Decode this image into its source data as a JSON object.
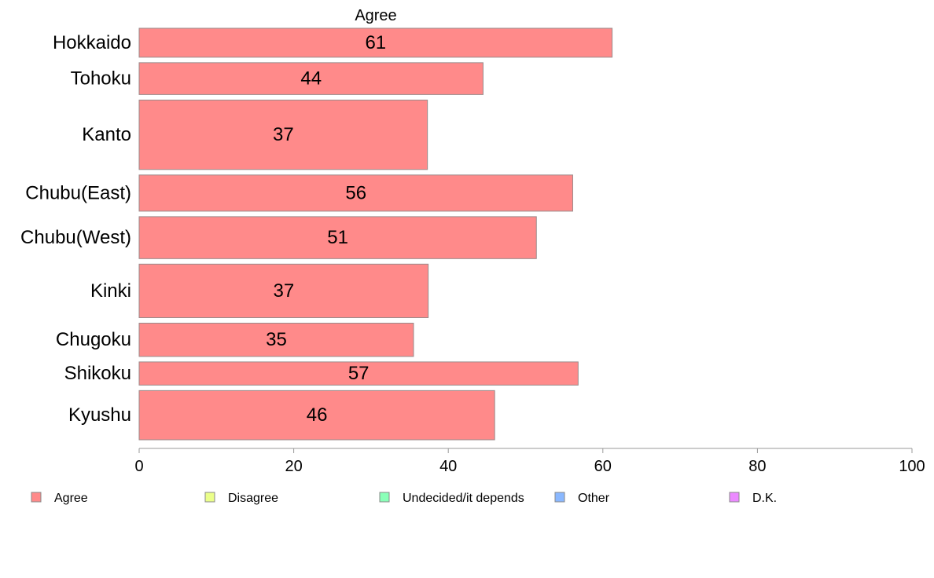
{
  "chart_data": {
    "type": "bar",
    "orientation": "horizontal",
    "title": "Agree",
    "categories": [
      "Hokkaido",
      "Tohoku",
      "Kanto",
      "Chubu(East)",
      "Chubu(West)",
      "Kinki",
      "Chugoku",
      "Shikoku",
      "Kyushu"
    ],
    "series": [
      {
        "name": "Agree",
        "color": "#ff8a8a",
        "values": [
          61.2,
          44.5,
          37.3,
          56.1,
          51.4,
          37.4,
          35.5,
          56.8,
          46.0
        ]
      }
    ],
    "data_labels": [
      "61",
      "44",
      "37",
      "56",
      "51",
      "37",
      "35",
      "57",
      "46"
    ],
    "category_weights": [
      1.0,
      1.1,
      2.4,
      1.25,
      1.45,
      1.85,
      1.15,
      0.8,
      1.7
    ],
    "xlim": [
      0,
      100
    ],
    "xticks": [
      0,
      20,
      40,
      60,
      80,
      100
    ],
    "xtick_labels": [
      "0",
      "20",
      "40",
      "60",
      "80",
      "100"
    ],
    "grid": false,
    "legend_position": "bottom",
    "legend": [
      {
        "label": "Agree",
        "color": "#ff8a8a"
      },
      {
        "label": "Disagree",
        "color": "#ebff8a"
      },
      {
        "label": "Undecided/it depends",
        "color": "#8affb8"
      },
      {
        "label": "Other",
        "color": "#8ab8ff"
      },
      {
        "label": "D.K.",
        "color": "#eb8aff"
      }
    ]
  }
}
